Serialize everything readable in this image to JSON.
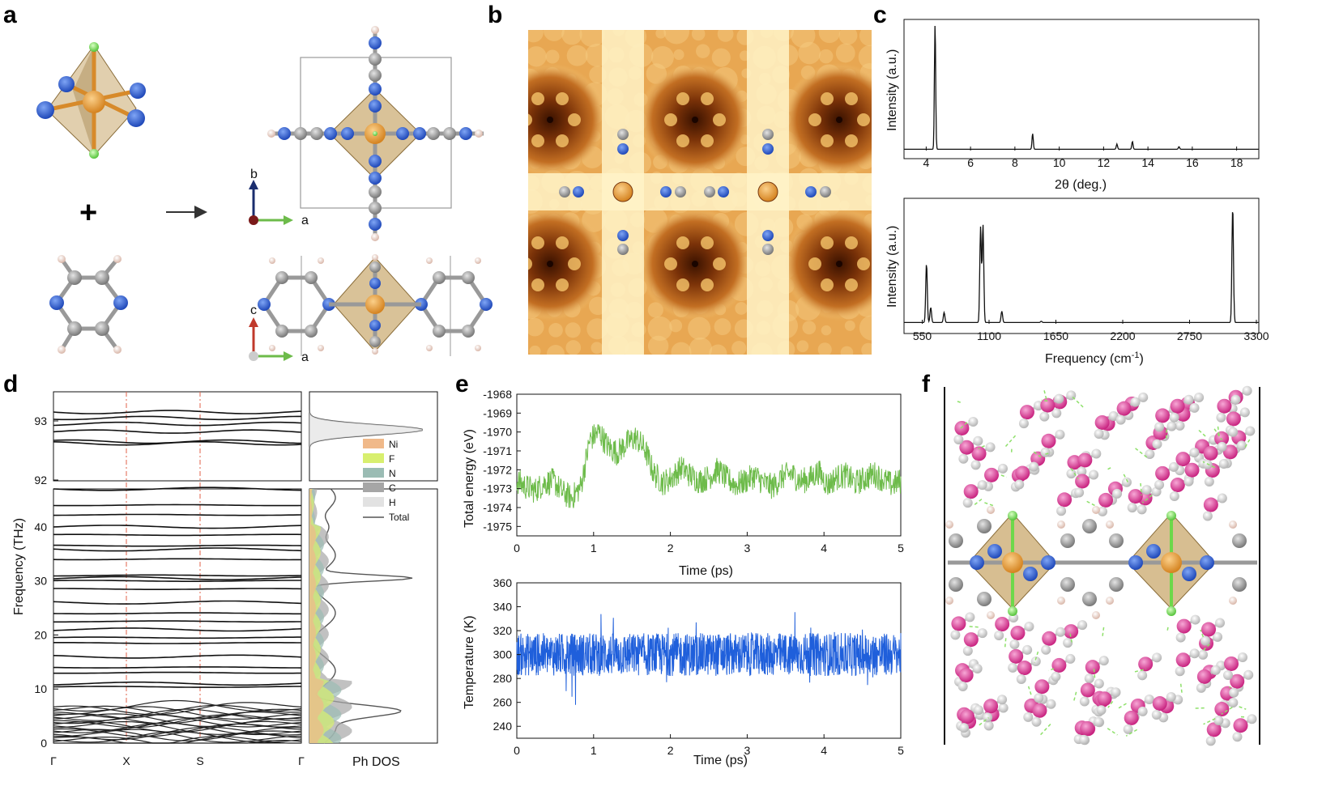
{
  "panels": {
    "a": "a",
    "b": "b",
    "c": "c",
    "d": "d",
    "e": "e",
    "f": "f"
  },
  "panel_a": {
    "axis_top": {
      "b": "b",
      "a": "a"
    },
    "axis_bottom": {
      "c": "c",
      "a": "a"
    },
    "plus": "+"
  },
  "colors": {
    "green": "#6dbb4a",
    "blue": "#1f5fdb",
    "line": "#111111",
    "ni": "#e59a3b",
    "n_atom": "#2c55c8",
    "c_atom": "#9a9a9a",
    "h_atom": "#f0c8b8",
    "f_atom": "#8ee06a",
    "o_atom": "#d6409b",
    "octahedron": "#b8925a",
    "stm_dark": "#6b2a07",
    "stm_light": "#fff2c4"
  },
  "chart_data": [
    {
      "id": "c-top",
      "type": "line",
      "xlabel": "2θ (deg.)",
      "ylabel": "Intensity (a.u.)",
      "xlim": [
        3,
        19
      ],
      "xticks": [
        4,
        6,
        8,
        10,
        12,
        14,
        16,
        18
      ],
      "peaks": [
        {
          "x": 4.4,
          "y": 0.96
        },
        {
          "x": 8.8,
          "y": 0.12
        },
        {
          "x": 12.6,
          "y": 0.04
        },
        {
          "x": 13.3,
          "y": 0.06
        },
        {
          "x": 15.4,
          "y": 0.02
        }
      ]
    },
    {
      "id": "c-bottom",
      "type": "line",
      "xlabel": "Frequency (cm⁻¹)",
      "ylabel": "Intensity (a.u.)",
      "xlim": [
        400,
        3320
      ],
      "xticks": [
        550,
        1100,
        1650,
        2200,
        2750,
        3300
      ],
      "peaks": [
        {
          "x": 585,
          "y": 0.47
        },
        {
          "x": 620,
          "y": 0.12
        },
        {
          "x": 730,
          "y": 0.08
        },
        {
          "x": 1030,
          "y": 0.76
        },
        {
          "x": 1050,
          "y": 0.78
        },
        {
          "x": 1205,
          "y": 0.09
        },
        {
          "x": 1530,
          "y": 0.01
        },
        {
          "x": 3105,
          "y": 0.92
        }
      ]
    },
    {
      "id": "d",
      "type": "line",
      "ylabel": "Frequency (THz)",
      "xticks": [
        "Γ",
        "X",
        "S",
        "Γ"
      ],
      "lower_yticks": [
        0,
        10,
        20,
        30,
        40
      ],
      "upper_yticks": [
        92,
        93
      ],
      "dos_label": "Ph DOS",
      "legend": [
        {
          "name": "Ni",
          "color": "#f0b98a"
        },
        {
          "name": "F",
          "color": "#d8ef6f"
        },
        {
          "name": "N",
          "color": "#9bbcb4"
        },
        {
          "name": "C",
          "color": "#a6a6a6"
        },
        {
          "name": "H",
          "color": "#e2e2e2"
        },
        {
          "name": "Total",
          "color": "#555555"
        }
      ]
    },
    {
      "id": "e-top",
      "type": "line",
      "xlabel": "Time (ps)",
      "ylabel": "Total energy (eV)",
      "xlim": [
        0,
        5
      ],
      "ylim": [
        -1975.5,
        -1968
      ],
      "xticks": [
        0,
        1,
        2,
        3,
        4,
        5
      ],
      "yticks": [
        -1968,
        -1969,
        -1970,
        -1971,
        -1972,
        -1973,
        -1974,
        -1975
      ],
      "series": [
        {
          "values": [
            -1972.6,
            -1972.9,
            -1973.1,
            -1972.7,
            -1972.6,
            -1973.2,
            -1973.5,
            -1972.9,
            -1970.4,
            -1970.0,
            -1970.8,
            -1971.1,
            -1970.6,
            -1970.3,
            -1970.9,
            -1972.2,
            -1972.7,
            -1972.4,
            -1971.9,
            -1972.3,
            -1972.6,
            -1972.4,
            -1972.0,
            -1972.5,
            -1972.8,
            -1972.6,
            -1972.3,
            -1972.7,
            -1972.9,
            -1972.4,
            -1972.2,
            -1972.6,
            -1972.5,
            -1972.1,
            -1972.8,
            -1972.4,
            -1972.3,
            -1972.7,
            -1972.5,
            -1972.2,
            -1972.5,
            -1972.8,
            -1972.6
          ]
        }
      ]
    },
    {
      "id": "e-bottom",
      "type": "line",
      "xlabel": "Time (ps)",
      "ylabel": "Temperature (K)",
      "xlim": [
        0,
        5
      ],
      "ylim": [
        230,
        360
      ],
      "xticks": [
        0,
        1,
        2,
        3,
        4,
        5
      ],
      "yticks": [
        240,
        260,
        280,
        300,
        320,
        340,
        360
      ],
      "series": [
        {
          "mean": 300,
          "amplitude": 18
        }
      ]
    }
  ]
}
